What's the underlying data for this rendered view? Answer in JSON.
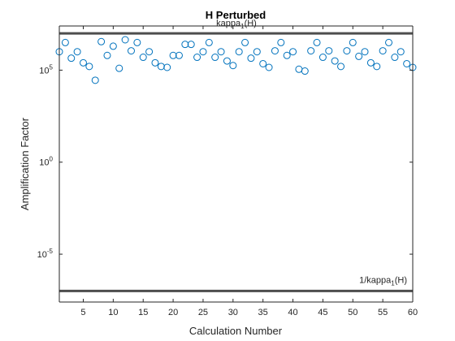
{
  "chart_data": {
    "type": "scatter",
    "title": "H Perturbed",
    "xlabel": "Calculation Number",
    "ylabel": "Amplification Factor",
    "xlim": [
      1,
      60
    ],
    "ylim_log10": [
      -7.6,
      7.4
    ],
    "y_scale": "log",
    "grid": false,
    "legend": "none",
    "x_ticks": [
      5,
      10,
      15,
      20,
      25,
      30,
      35,
      40,
      45,
      50,
      55,
      60
    ],
    "y_ticks": [
      {
        "base": "10",
        "exp": "5",
        "log10": 5
      },
      {
        "base": "10",
        "exp": "0",
        "log10": 0
      },
      {
        "base": "10",
        "exp": "-5",
        "log10": -5
      }
    ],
    "reference_lines": [
      {
        "label_main": "kappa",
        "label_sub": "1",
        "label_rest": "(H)",
        "log10": 7.0
      },
      {
        "label_main": "1/kappa",
        "label_sub": "1",
        "label_rest": "(H)",
        "log10": -7.0
      }
    ],
    "series": [
      {
        "marker": "open-circle",
        "color": "#0072BD",
        "x": [
          1,
          2,
          3,
          4,
          5,
          6,
          7,
          8,
          9,
          10,
          11,
          12,
          13,
          14,
          15,
          16,
          17,
          18,
          19,
          20,
          21,
          22,
          23,
          24,
          25,
          26,
          27,
          28,
          29,
          30,
          31,
          32,
          33,
          34,
          35,
          36,
          37,
          38,
          39,
          40,
          41,
          42,
          43,
          44,
          45,
          46,
          47,
          48,
          49,
          50,
          51,
          52,
          53,
          54,
          55,
          56,
          57,
          58,
          59,
          60
        ],
        "log10_y": [
          6.0,
          6.5,
          5.65,
          6.0,
          5.4,
          5.2,
          4.45,
          6.55,
          5.8,
          6.3,
          5.1,
          6.65,
          6.05,
          6.5,
          5.7,
          6.0,
          5.4,
          5.2,
          5.15,
          5.8,
          5.8,
          6.4,
          6.4,
          5.7,
          6.0,
          6.5,
          5.7,
          6.0,
          5.5,
          5.25,
          6.0,
          6.5,
          5.65,
          6.0,
          5.35,
          5.15,
          6.05,
          6.5,
          5.8,
          6.0,
          5.05,
          4.95,
          6.05,
          6.5,
          5.7,
          6.05,
          5.5,
          5.2,
          6.05,
          6.5,
          5.75,
          6.0,
          5.4,
          5.2,
          6.05,
          6.5,
          5.7,
          6.0,
          5.35,
          5.15
        ]
      }
    ]
  },
  "colors": {
    "axis": "#262626",
    "reference_line": "#4d4d4d",
    "marker": "#0072BD"
  }
}
